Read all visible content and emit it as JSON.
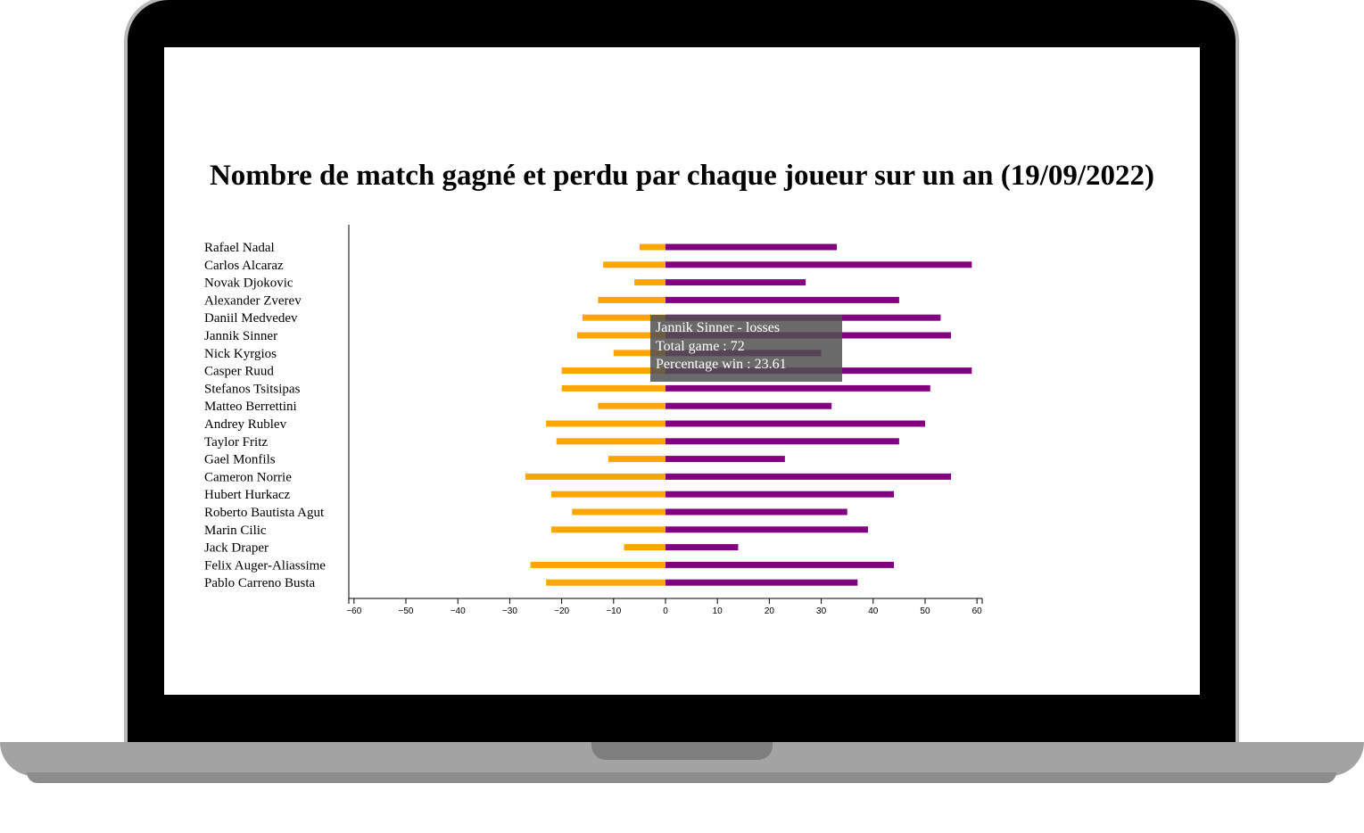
{
  "chart_data": {
    "type": "bar",
    "title": "Nombre de match gagné et perdu par chaque joueur sur un an (19/09/2022)",
    "categories": [
      "Rafael Nadal",
      "Carlos Alcaraz",
      "Novak Djokovic",
      "Alexander Zverev",
      "Daniil Medvedev",
      "Jannik Sinner",
      "Nick Kyrgios",
      "Casper Ruud",
      "Stefanos Tsitsipas",
      "Matteo Berrettini",
      "Andrey Rublev",
      "Taylor Fritz",
      "Gael Monfils",
      "Cameron Norrie",
      "Hubert Hurkacz",
      "Roberto Bautista Agut",
      "Marin Cilic",
      "Jack Draper",
      "Felix Auger-Aliassime",
      "Pablo Carreno Busta"
    ],
    "series": [
      {
        "values": [
          33,
          59,
          27,
          45,
          53,
          55,
          30,
          59,
          51,
          32,
          50,
          45,
          23,
          55,
          44,
          35,
          39,
          14,
          44,
          37
        ],
        "color": "#800080"
      },
      {
        "values": [
          -5,
          -12,
          -6,
          -13,
          -16,
          -17,
          -10,
          -20,
          -20,
          -13,
          -23,
          -21,
          -11,
          -27,
          -22,
          -18,
          -22,
          -8,
          -26,
          -23
        ],
        "color": "#FFA500"
      }
    ],
    "xlim": [
      -61,
      61
    ],
    "xticks": [
      -60,
      -50,
      -40,
      -30,
      -20,
      -10,
      0,
      10,
      20,
      30,
      40,
      50,
      60
    ],
    "tick_labels": [
      "−60",
      "−50",
      "−40",
      "−30",
      "−20",
      "−10",
      "0",
      "10",
      "20",
      "30",
      "40",
      "50",
      "60"
    ],
    "tooltip": {
      "line1": "Jannik Sinner - losses",
      "line2": "Total game : 72",
      "line3": "Percentage win : 23.61"
    }
  }
}
